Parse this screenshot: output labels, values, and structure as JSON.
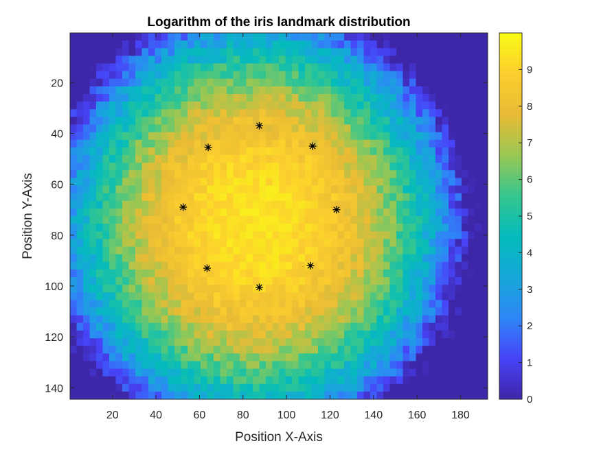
{
  "chart_data": {
    "type": "heatmap",
    "title": "Logarithm of the iris landmark distribution",
    "xlabel": "Position X-Axis",
    "ylabel": "Position Y-Axis",
    "xlim": [
      0.5,
      192.5
    ],
    "ylim": [
      0.5,
      144.5
    ],
    "y_direction": "reverse",
    "xticks": [
      20,
      40,
      60,
      80,
      100,
      120,
      140,
      160,
      180
    ],
    "yticks": [
      20,
      40,
      60,
      80,
      100,
      120,
      140
    ],
    "colormap": "parula",
    "clim": [
      0,
      10
    ],
    "colorbar_ticks": [
      0,
      1,
      2,
      3,
      4,
      5,
      6,
      7,
      8,
      9
    ],
    "colormap_stops": [
      "#3e26a8",
      "#4743f8",
      "#2e87f7",
      "#16a8d8",
      "#04bbbc",
      "#36c68e",
      "#99c753",
      "#e9bb35",
      "#fcce2e",
      "#f9fb15"
    ],
    "distribution": {
      "center_x": 86,
      "center_y": 75,
      "radius_x": 92,
      "radius_y": 82,
      "peak": 9.4
    },
    "landmarks": {
      "marker": "*",
      "color": "#000000",
      "points": [
        {
          "x": 87.5,
          "y": 37
        },
        {
          "x": 64,
          "y": 45.5
        },
        {
          "x": 112,
          "y": 45
        },
        {
          "x": 52.5,
          "y": 69
        },
        {
          "x": 123,
          "y": 70
        },
        {
          "x": 111,
          "y": 92
        },
        {
          "x": 63.5,
          "y": 93
        },
        {
          "x": 87.5,
          "y": 100.5
        }
      ]
    }
  }
}
